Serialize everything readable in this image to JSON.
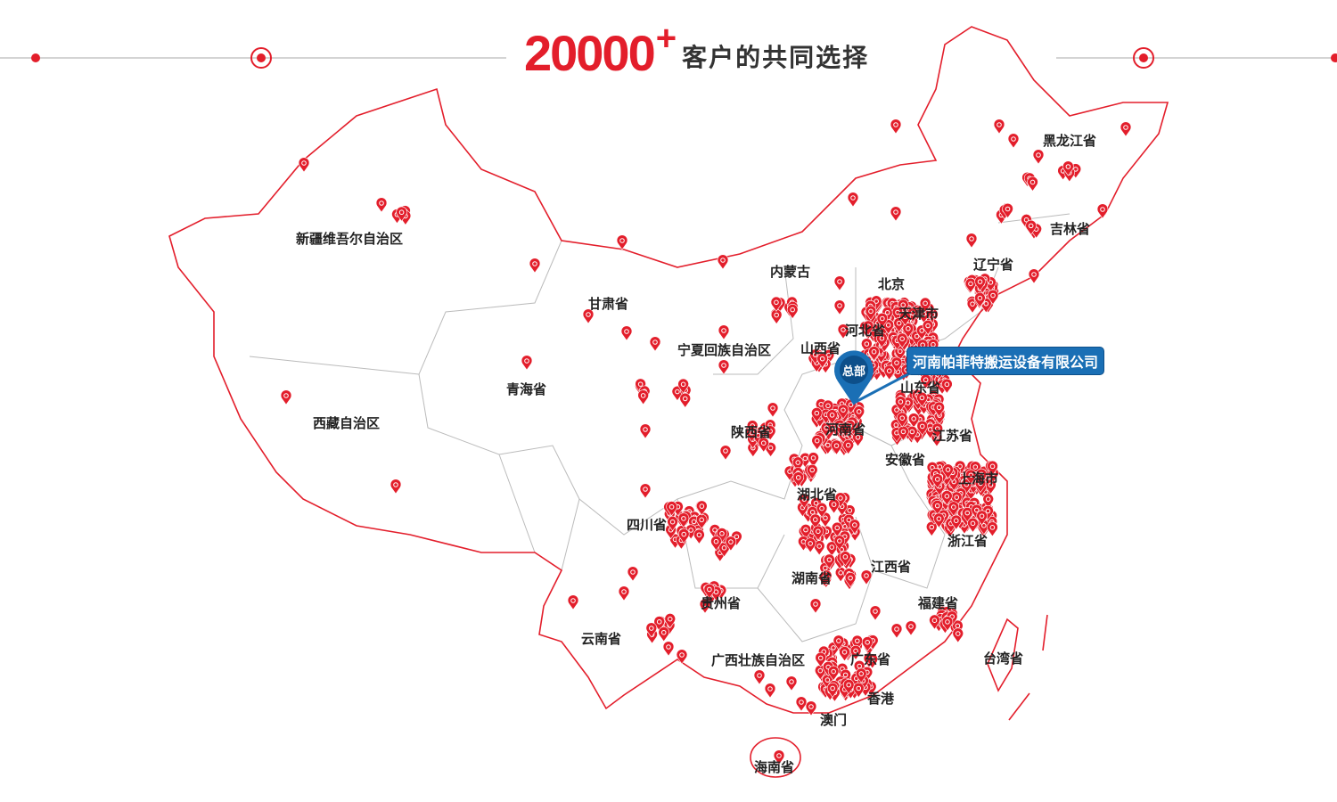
{
  "header": {
    "count": "20000",
    "plus": "+",
    "subtitle": "客户的共同选择"
  },
  "colors": {
    "accent": "#e31e2b",
    "border": "#e31e2b",
    "province_line": "#bbbbbb",
    "hq_blue": "#1a6fb5"
  },
  "headquarters": {
    "badge": "总部",
    "company": "河南帕菲特搬运设备有限公司"
  },
  "provinces": [
    "新疆维吾尔自治区",
    "西藏自治区",
    "青海省",
    "甘肃省",
    "内蒙古",
    "宁夏回族自治区",
    "山西省",
    "北京",
    "天津市",
    "河北省",
    "黑龙江省",
    "吉林省",
    "辽宁省",
    "山东省",
    "河南省",
    "陕西省",
    "江苏省",
    "安徽省",
    "上海市",
    "湖北省",
    "四川省",
    "浙江省",
    "江西省",
    "湖南省",
    "贵州省",
    "福建省",
    "云南省",
    "广西壮族自治区",
    "广东省",
    "台湾省",
    "香港",
    "澳门",
    "海南省"
  ],
  "icons": {
    "pin": "map-pin-icon",
    "hq_pin": "hq-map-pin-icon",
    "target": "target-circle-icon"
  }
}
